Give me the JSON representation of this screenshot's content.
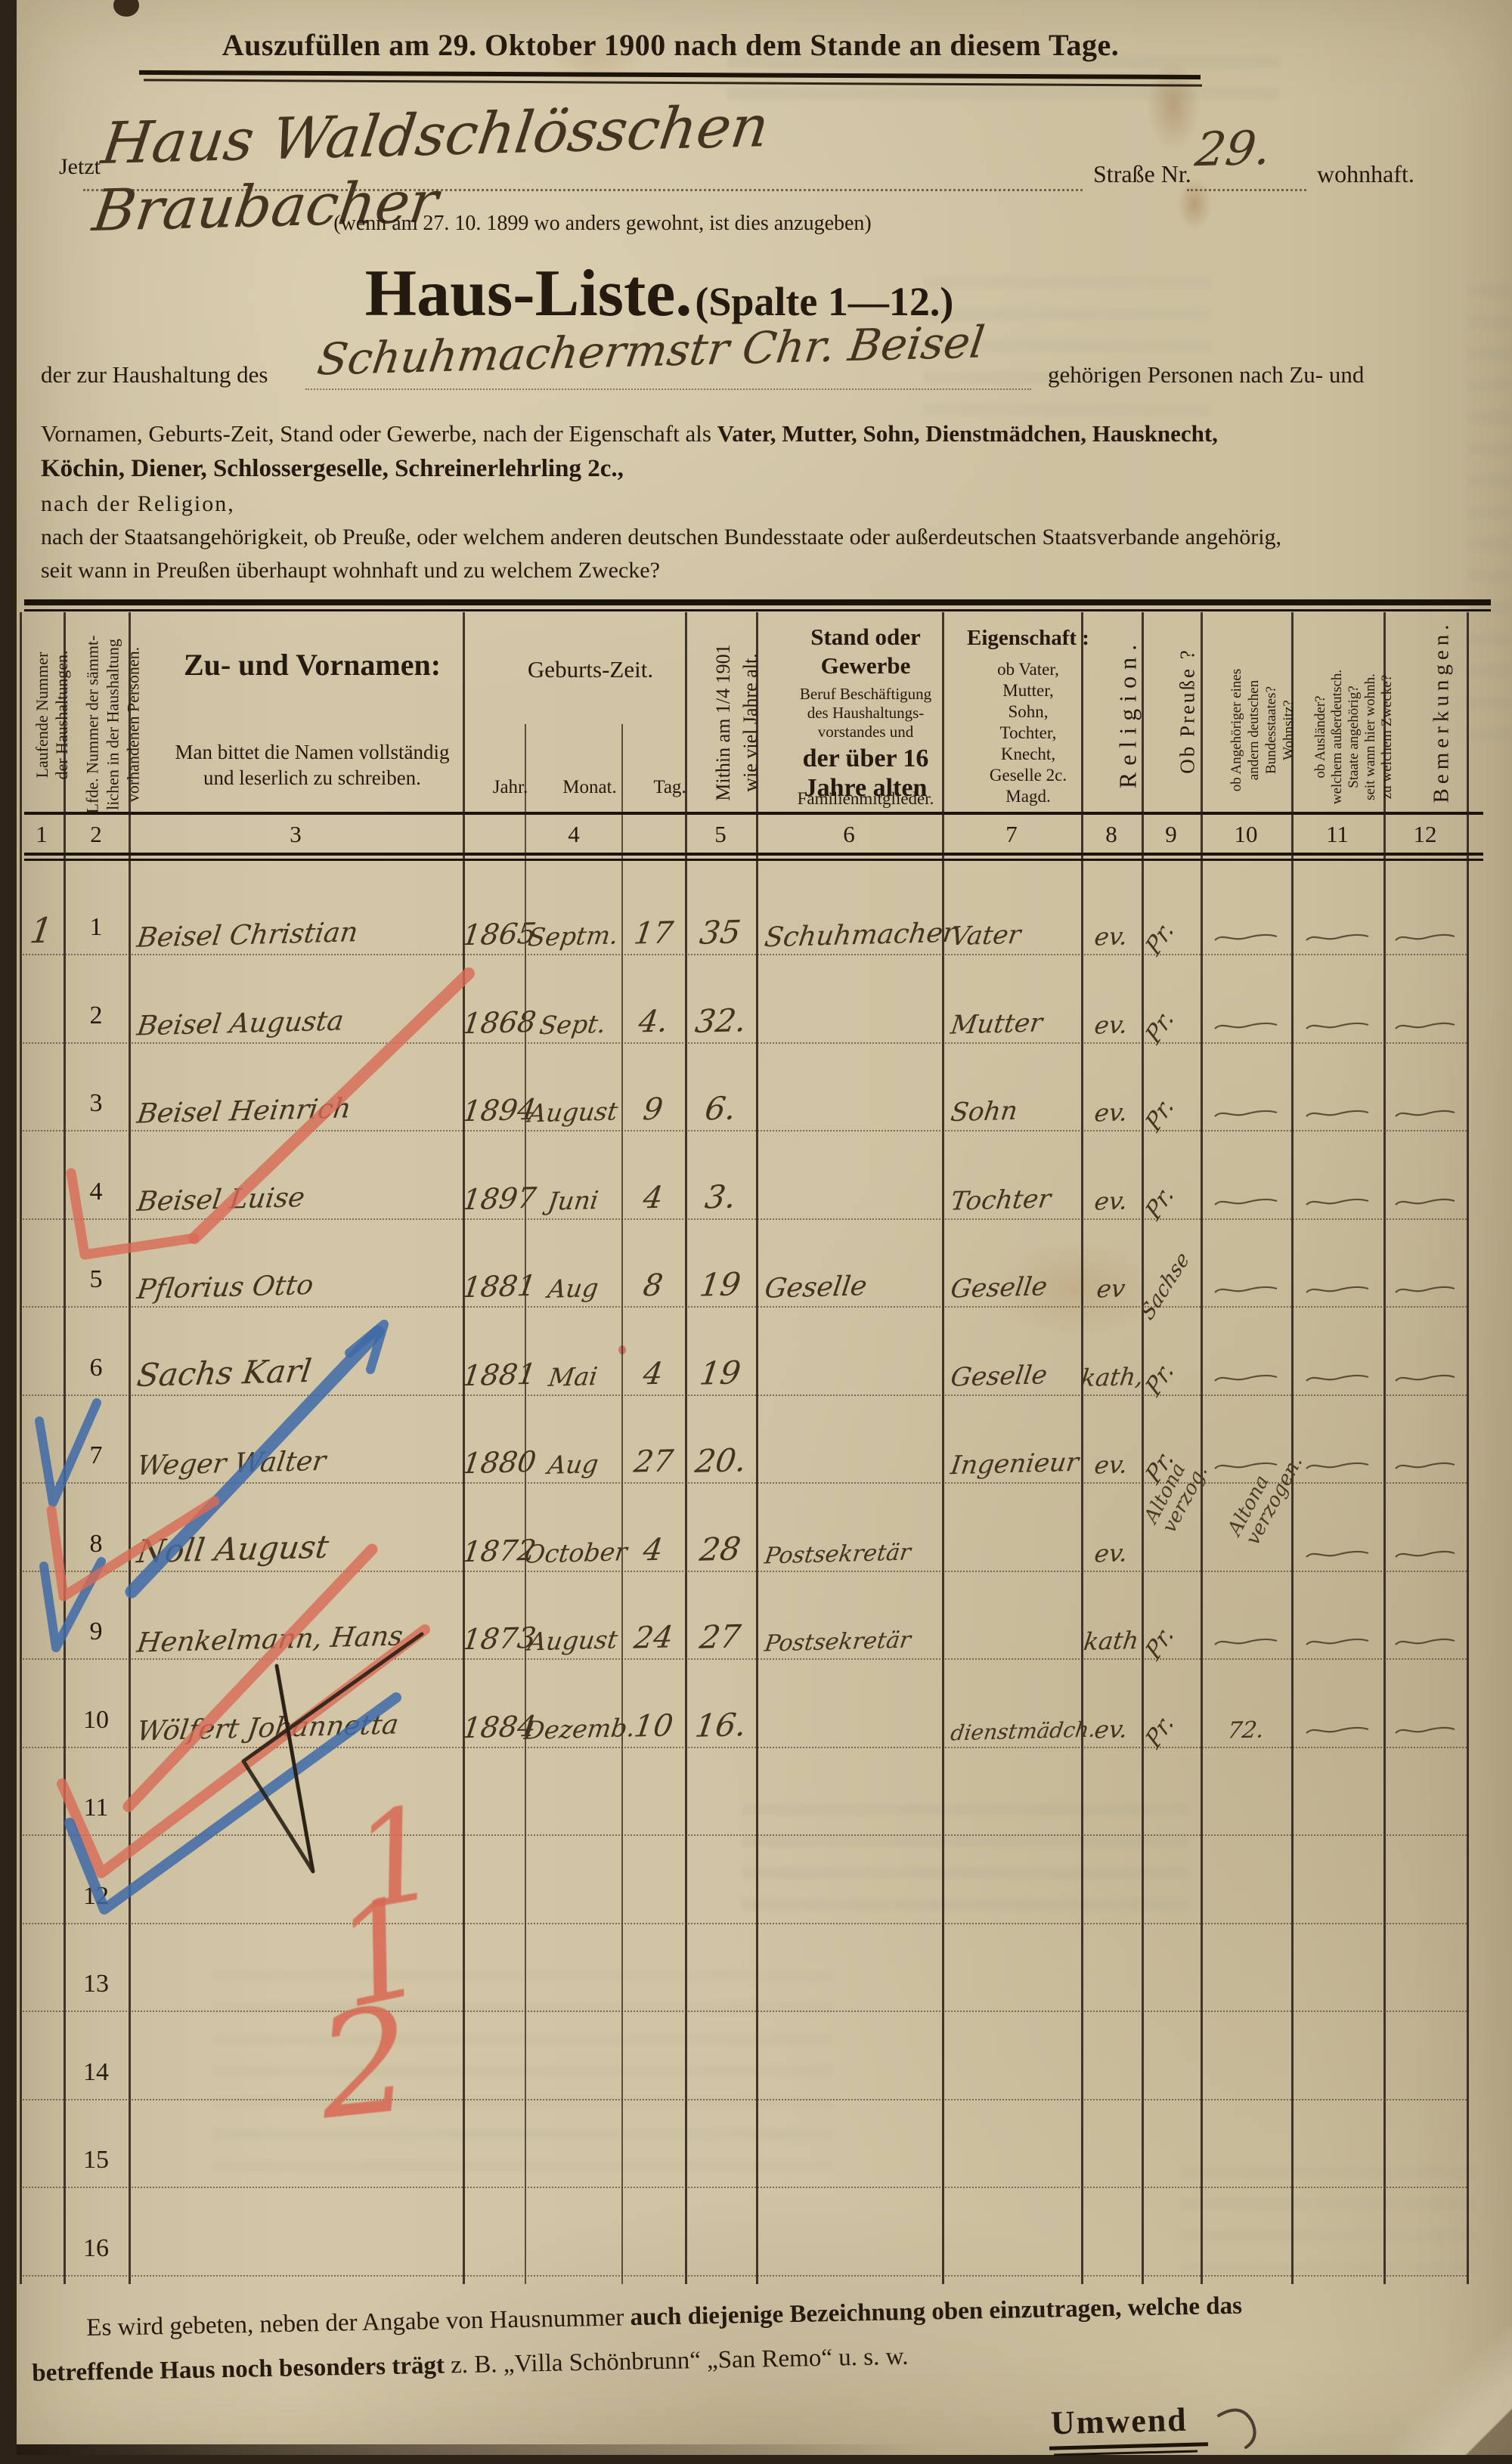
{
  "page": {
    "headline": "Auszufüllen am 29. Oktober 1900 nach dem Stande an diesem Tage.",
    "jetzt_label": "Jetzt",
    "location_handwritten": "Haus Waldschlösschen Braubacher",
    "strasse_label": "Straße Nr.",
    "house_number_handwritten": "29.",
    "wohnhaft_label": "wohnhaft.",
    "previous_residence_note": "(wenn am 27. 10. 1899 wo anders gewohnt, ist dies anzugeben)",
    "title": "Haus-Liste.",
    "title_suffix": "(Spalte 1—12.)",
    "household_prefix": "der zur Haushaltung des",
    "household_head_handwritten": "Schuhmachermstr Chr. Beisel",
    "household_suffix": "gehörigen Personen nach Zu- und",
    "para_line2_normal": "Vornamen, Geburts-Zeit, Stand oder Gewerbe, nach der Eigenschaft als ",
    "para_line2_bold": "Vater, Mutter, Sohn, Dienstmädchen, Hausknecht,",
    "para_line3_bold": "Köchin, Diener, Schlossergeselle, Schreinerlehrling 2c.,",
    "para_line4": "nach der Religion,",
    "para_line5": "nach der Staatsangehörigkeit, ob Preuße, oder welchem anderen deutschen Bundesstaate oder außerdeutschen Staatsverbande angehörig,",
    "para_line6": "seit wann in Preußen überhaupt wohnhaft und zu welchem Zwecke?"
  },
  "table": {
    "col_headers": {
      "c1": "Laufende Nummer\nder Haushaltungen.",
      "c2": "Lfde. Nummer der sämmt-\nlichen in der Haushaltung\nvorhandenen Personen.",
      "c3_title": "Zu- und Vornamen:",
      "c3_note": "Man bittet die Namen vollständig\nund leserlich zu schreiben.",
      "c4_title": "Geburts-Zeit.",
      "c4_jahr": "Jahr.",
      "c4_monat": "Monat.",
      "c4_tag": "Tag.",
      "c5": "Mithin am 1/4 1901\nwie viel Jahre alt.",
      "c6_title": "Stand oder\nGewerbe",
      "c6_small": "Beruf Beschäftigung\ndes Haushaltungs-\nvorstandes und",
      "c6_bold": "der über 16\nJahre alten",
      "c6_tail": "Familienmitglieder.",
      "c7_title": "Eigenschaft :",
      "c7_list": "ob Vater,\nMutter,\nSohn,\nTochter,\nKnecht,\nGeselle 2c.\nMagd.",
      "c8": "Religion.",
      "c9": "Ob Preuße ?",
      "c10": "ob Angehöriger eines\nandern deutschen\nBundesstaates?\nWohnsitz?",
      "c11": "ob Ausländer?\nwelchem außerdeutsch.\nStaate angehörig?\nseit wann hier wohnh.\nzu welchem Zwecke?",
      "c12": "Bemerkungen."
    },
    "column_numbers": [
      "1",
      "2",
      "3",
      "4",
      "5",
      "6",
      "7",
      "8",
      "9",
      "10",
      "11",
      "12"
    ],
    "rows": [
      {
        "hh": "1",
        "no": "1",
        "name": "Beisel Christian",
        "jahr": "1865",
        "monat": "Septm.",
        "tag": "17",
        "alter": "35",
        "gewerbe": "Schuhmacher",
        "eigenschaft": "Vater",
        "religion": "ev.",
        "preusse": "Pr.",
        "c10": "—",
        "c11": "—",
        "c12": "—"
      },
      {
        "no": "2",
        "name": "Beisel Augusta",
        "jahr": "1868",
        "monat": "Sept.",
        "tag": "4.",
        "alter": "32.",
        "gewerbe": "",
        "eigenschaft": "Mutter",
        "religion": "ev.",
        "preusse": "Pr.",
        "c10": "—",
        "c11": "—",
        "c12": "—"
      },
      {
        "no": "3",
        "name": "Beisel Heinrich",
        "jahr": "1894",
        "monat": "August",
        "tag": "9",
        "alter": "6.",
        "gewerbe": "",
        "eigenschaft": "Sohn",
        "religion": "ev.",
        "preusse": "Pr.",
        "c10": "—",
        "c11": "—",
        "c12": "—"
      },
      {
        "no": "4",
        "name": "Beisel Luise",
        "jahr": "1897",
        "monat": "Juni",
        "tag": "4",
        "alter": "3.",
        "gewerbe": "",
        "eigenschaft": "Tochter",
        "religion": "ev.",
        "preusse": "Pr.",
        "c10": "—",
        "c11": "—",
        "c12": "—"
      },
      {
        "no": "5",
        "name": "Pflorius Otto",
        "jahr": "1881",
        "monat": "Aug",
        "tag": "8",
        "alter": "19",
        "gewerbe": "Geselle",
        "eigenschaft": "Geselle",
        "religion": "ev",
        "preusse": "Sachse",
        "c10": "—",
        "c11": "—",
        "c12": "—"
      },
      {
        "no": "6",
        "name": "Sachs Karl",
        "jahr": "1881",
        "monat": "Mai",
        "tag": "4",
        "alter": "19",
        "gewerbe": "",
        "eigenschaft": "Geselle",
        "religion": "kath,",
        "preusse": "Pr.",
        "c10": "—",
        "c11": "—",
        "c12": "—"
      },
      {
        "no": "7",
        "name": "Weger Walter",
        "jahr": "1880",
        "monat": "Aug",
        "tag": "27",
        "alter": "20.",
        "gewerbe": "",
        "eigenschaft": "Ingenieur",
        "religion": "ev.",
        "preusse": "Pr.",
        "c10": "—",
        "c11": "—",
        "c12": "—"
      },
      {
        "no": "8",
        "name": "Noll August",
        "jahr": "1872",
        "monat": "October",
        "tag": "4",
        "alter": "28",
        "gewerbe": "Postsekretär",
        "eigenschaft": "",
        "religion": "ev.",
        "preusse": "",
        "c10": "",
        "c11": "—",
        "c12": "—"
      },
      {
        "no": "9",
        "name": "Henkelmann, Hans",
        "jahr": "1873",
        "monat": "August",
        "tag": "24",
        "alter": "27",
        "gewerbe": "Postsekretär",
        "eigenschaft": "",
        "religion": "kath",
        "preusse": "Pr.",
        "c10": "—",
        "c11": "—",
        "c12": "—"
      },
      {
        "no": "10",
        "name": "Wölfert Johannetta",
        "jahr": "1884",
        "monat": "Dezemb.",
        "tag": "10",
        "alter": "16.",
        "gewerbe": "",
        "eigenschaft": "dienstmädch.",
        "religion": "ev.",
        "preusse": "Pr.",
        "c10": "72.",
        "c11": "—",
        "c12": "—"
      },
      {
        "no": "11"
      },
      {
        "no": "12"
      },
      {
        "no": "13"
      },
      {
        "no": "14"
      },
      {
        "no": "15"
      },
      {
        "no": "16"
      }
    ],
    "annotations": [
      {
        "text": "Altona\nverzog."
      },
      {
        "text": "Altona\nverzogen."
      }
    ]
  },
  "marks": {
    "red_numerals": [
      "1",
      "1",
      "2"
    ],
    "red_color": "#d96a55",
    "blue_color": "#3e6aa8",
    "ink_color": "#2a2016"
  },
  "footer": {
    "line1_normal": "Es wird gebeten, neben der Angabe von Hausnummer ",
    "line1_bold": "auch diejenige Bezeichnung oben einzutragen, welche das",
    "line2_bold": "betreffende Haus noch besonders trägt",
    "line2_normal": " z. B. „Villa Schönbrunn“ „San Remo“ u. s. w.",
    "turn_over": "Umwend"
  }
}
